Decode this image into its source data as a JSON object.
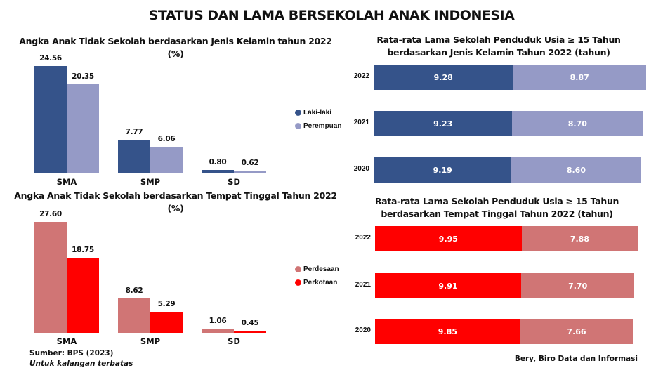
{
  "title": "STATUS DAN LAMA BERSEKOLAH ANAK INDONESIA",
  "colors": {
    "laki": "#35538A",
    "perempuan": "#959AC6",
    "perdesaan": "#D07575",
    "perkotaan": "#FF0000"
  },
  "chart_data": [
    {
      "type": "bar",
      "title": "Angka Anak Tidak Sekolah berdasarkan Jenis Kelamin tahun 2022 (%)",
      "categories": [
        "SMA",
        "SMP",
        "SD"
      ],
      "series": [
        {
          "name": "Laki-laki",
          "values": [
            24.56,
            7.77,
            0.8
          ],
          "labels": [
            "24.56",
            "7.77",
            "0.80"
          ]
        },
        {
          "name": "Perempuan",
          "values": [
            20.35,
            6.06,
            0.62
          ],
          "labels": [
            "20.35",
            "6.06",
            "0.62"
          ]
        }
      ],
      "legend": "right"
    },
    {
      "type": "bar",
      "title": "Angka Anak Tidak Sekolah berdasarkan Tempat Tinggal Tahun 2022 (%)",
      "categories": [
        "SMA",
        "SMP",
        "SD"
      ],
      "series": [
        {
          "name": "Perdesaan",
          "values": [
            27.6,
            8.62,
            1.06
          ],
          "labels": [
            "27.60",
            "8.62",
            "1.06"
          ]
        },
        {
          "name": "Perkotaan",
          "values": [
            18.75,
            5.29,
            0.45
          ],
          "labels": [
            "18.75",
            "5.29",
            "0.45"
          ]
        }
      ],
      "legend": "right"
    },
    {
      "type": "bar",
      "orientation": "horizontal-stacked",
      "title": "Rata-rata Lama Sekolah Penduduk Usia ≥ 15 Tahun berdasarkan Jenis Kelamin Tahun 2022 (tahun)",
      "categories": [
        "2022",
        "2021",
        "2020"
      ],
      "series": [
        {
          "name": "Laki-laki",
          "values": [
            9.28,
            9.23,
            9.19
          ],
          "labels": [
            "9.28",
            "9.23",
            "9.19"
          ]
        },
        {
          "name": "Perempuan",
          "values": [
            8.87,
            8.7,
            8.6
          ],
          "labels": [
            "8.87",
            "8.70",
            "8.60"
          ]
        }
      ]
    },
    {
      "type": "bar",
      "orientation": "horizontal-stacked",
      "title": "Rata-rata Lama Sekolah Penduduk Usia ≥ 15 Tahun berdasarkan Tempat Tinggal Tahun 2022 (tahun)",
      "categories": [
        "2022",
        "2021",
        "2020"
      ],
      "series": [
        {
          "name": "Perkotaan",
          "values": [
            9.95,
            9.91,
            9.85
          ],
          "labels": [
            "9.95",
            "9.91",
            "9.85"
          ]
        },
        {
          "name": "Perdesaan",
          "values": [
            7.88,
            7.7,
            7.66
          ],
          "labels": [
            "7.88",
            "7.70",
            "7.66"
          ]
        }
      ]
    }
  ],
  "footer": {
    "source": "Sumber: BPS (2023)",
    "note": "Untuk kalangan terbatas",
    "author": "Bery, Biro Data dan Informasi"
  }
}
